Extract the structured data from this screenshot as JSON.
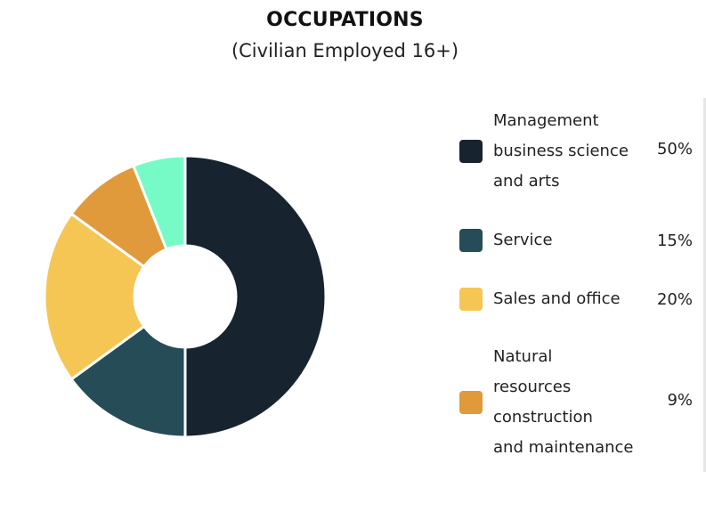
{
  "chart_data": {
    "type": "pie",
    "variant": "donut",
    "title": "OCCUPATIONS",
    "subtitle": "(Civilian Employed 16+)",
    "legend_position": "right",
    "categories": [
      "Management business science and arts",
      "Service",
      "Sales and office",
      "Natural resources construction and maintenance",
      ""
    ],
    "values": [
      50,
      15,
      20,
      9,
      6
    ],
    "colors": [
      "#172430",
      "#264c58",
      "#f5c653",
      "#e09a3c",
      "#76fbc7"
    ],
    "legend": [
      {
        "label": "Management business science and arts",
        "lines": [
          "Management",
          "business science",
          "and arts"
        ],
        "percent": "50%",
        "color": "#172430"
      },
      {
        "label": "Service",
        "lines": [
          "Service"
        ],
        "percent": "15%",
        "color": "#264c58"
      },
      {
        "label": "Sales and office",
        "lines": [
          "Sales and office"
        ],
        "percent": "20%",
        "color": "#f5c653"
      },
      {
        "label": "Natural resources construction and maintenance",
        "lines": [
          "Natural",
          "resources",
          "construction",
          "and maintenance"
        ],
        "percent": "9%",
        "color": "#e09a3c"
      }
    ]
  }
}
